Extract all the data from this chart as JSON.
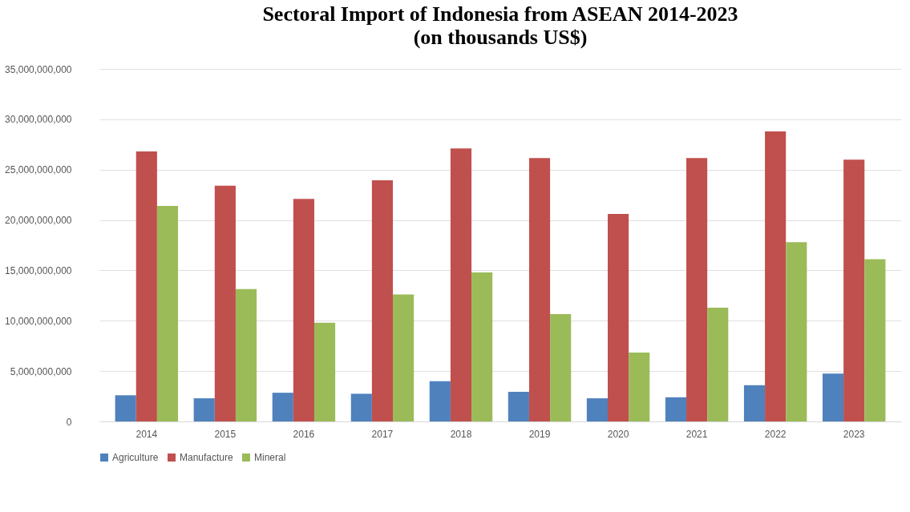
{
  "chart_data": {
    "type": "bar",
    "title": "Sectoral Import of Indonesia from ASEAN 2014-2023",
    "subtitle": "(on thousands US$)",
    "categories": [
      "2014",
      "2015",
      "2016",
      "2017",
      "2018",
      "2019",
      "2020",
      "2021",
      "2022",
      "2023"
    ],
    "series": [
      {
        "name": "Agriculture",
        "color": "#4f81bd",
        "values": [
          2600000000,
          2300000000,
          2850000000,
          2750000000,
          4000000000,
          2950000000,
          2300000000,
          2400000000,
          3600000000,
          4750000000
        ]
      },
      {
        "name": "Manufacture",
        "color": "#c0504d",
        "values": [
          26800000000,
          23400000000,
          22100000000,
          23950000000,
          27100000000,
          26150000000,
          20600000000,
          26150000000,
          28800000000,
          26000000000
        ]
      },
      {
        "name": "Mineral",
        "color": "#9bbb59",
        "values": [
          21400000000,
          13150000000,
          9800000000,
          12600000000,
          14800000000,
          10650000000,
          6850000000,
          11300000000,
          17800000000,
          16100000000
        ]
      }
    ],
    "ylim": [
      0,
      35000000000
    ],
    "yticks": [
      {
        "value": 0,
        "label": "0"
      },
      {
        "value": 5000000000,
        "label": "5,000,000,000"
      },
      {
        "value": 10000000000,
        "label": "10,000,000,000"
      },
      {
        "value": 15000000000,
        "label": "15,000,000,000"
      },
      {
        "value": 20000000000,
        "label": "20,000,000,000"
      },
      {
        "value": 25000000000,
        "label": "25,000,000,000"
      },
      {
        "value": 30000000000,
        "label": "30,000,000,000"
      },
      {
        "value": 35000000000,
        "label": "35,000,000,000"
      }
    ],
    "grid": "y",
    "legend": "bottom"
  }
}
